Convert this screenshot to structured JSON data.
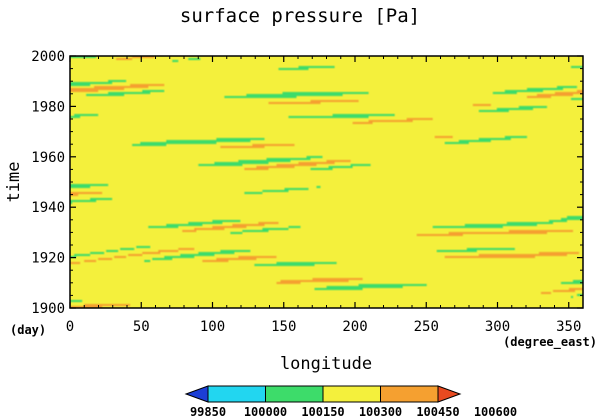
{
  "chart_data": {
    "type": "heatmap",
    "title": "surface pressure [Pa]",
    "xlabel": "longitude",
    "ylabel": "time",
    "x_unit": "(degree_east)",
    "y_unit": "(day)",
    "xlim": [
      0,
      360
    ],
    "ylim": [
      1900,
      2000
    ],
    "x_ticks": [
      0,
      50,
      100,
      150,
      200,
      250,
      300,
      350
    ],
    "y_ticks": [
      1900,
      1920,
      1940,
      1960,
      1980,
      2000
    ],
    "colorbar": {
      "boundaries": [
        99850,
        100000,
        100150,
        100300,
        100450,
        100600
      ],
      "labels": [
        "99850",
        "100000",
        "100150",
        "100300",
        "100450",
        "100600"
      ],
      "colors": [
        "#1c3fd6",
        "#22d6f0",
        "#3ddc6a",
        "#f4f03c",
        "#f5a030",
        "#e84a20"
      ],
      "extend": "both"
    },
    "field_description": "mixed"
  }
}
